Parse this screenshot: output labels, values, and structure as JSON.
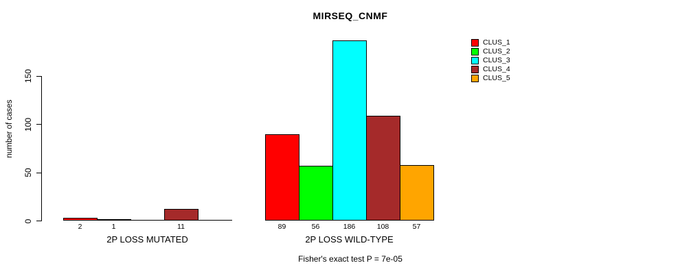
{
  "chart_data": {
    "type": "bar",
    "title": "MIRSEQ_CNMF",
    "ylabel": "number of cases",
    "xlabel": "",
    "yticks": [
      0,
      50,
      100,
      150
    ],
    "ylim": [
      0,
      190
    ],
    "grid": false,
    "legend_position": "right",
    "categories": [
      "CLUS_1",
      "CLUS_2",
      "CLUS_3",
      "CLUS_4",
      "CLUS_5"
    ],
    "colors": [
      "#ff0000",
      "#00ff00",
      "#00ffff",
      "#a52a2a",
      "#ffa500"
    ],
    "series": [
      {
        "name": "2P LOSS MUTATED",
        "values": [
          2,
          1,
          0,
          11,
          0
        ]
      },
      {
        "name": "2P LOSS WILD-TYPE",
        "values": [
          89,
          56,
          186,
          108,
          57
        ]
      }
    ],
    "value_labels": [
      [
        "2",
        "1",
        "",
        "11",
        ""
      ],
      [
        "89",
        "56",
        "186",
        "108",
        "57"
      ]
    ],
    "annotation": "Fisher's exact test P = 7e-05"
  }
}
